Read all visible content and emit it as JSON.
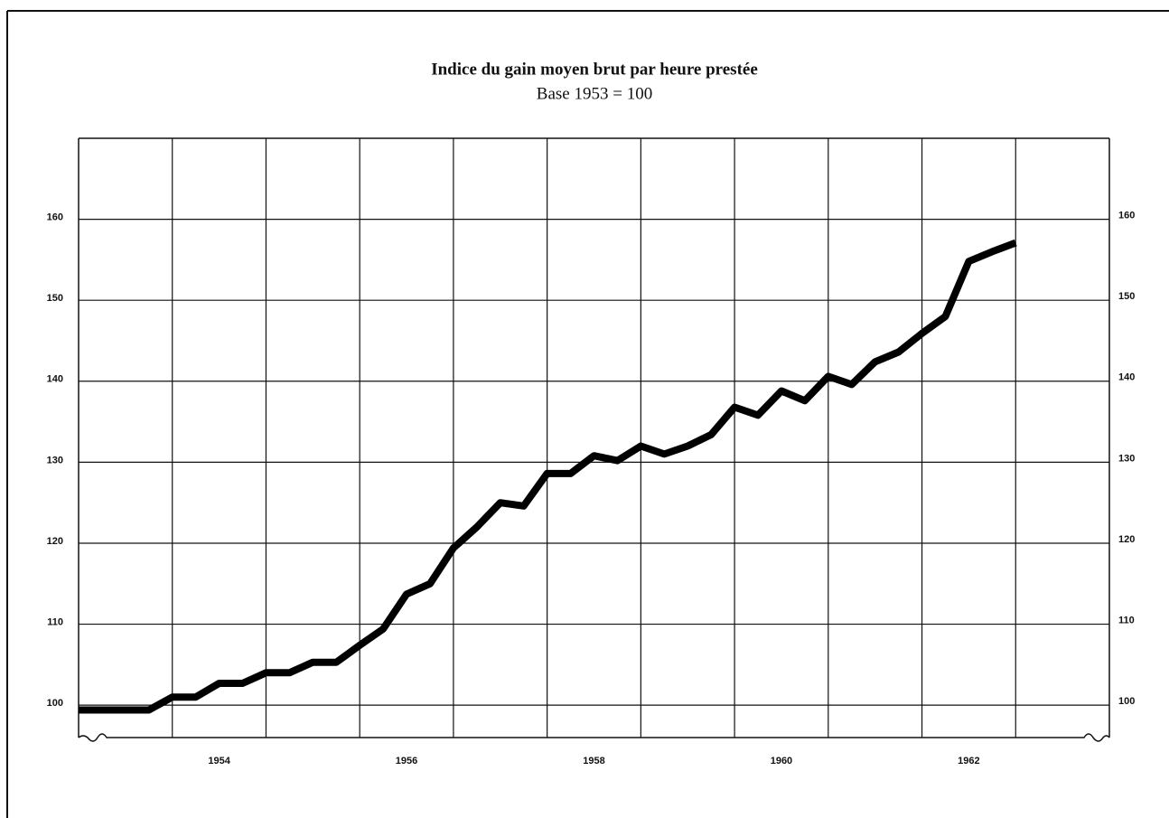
{
  "chart_data": {
    "type": "line",
    "title": "Indice du gain moyen brut par heure prestée",
    "subtitle": "Base 1953 = 100",
    "x": [
      1953,
      1953.25,
      1953.5,
      1953.75,
      1954,
      1954.25,
      1954.5,
      1954.75,
      1955,
      1955.25,
      1955.5,
      1955.75,
      1956,
      1956.25,
      1956.5,
      1956.75,
      1957,
      1957.25,
      1957.5,
      1957.75,
      1958,
      1958.25,
      1958.5,
      1958.75,
      1959,
      1959.25,
      1959.5,
      1959.75,
      1960,
      1960.25,
      1960.5,
      1960.75,
      1961,
      1961.25,
      1961.5,
      1961.75,
      1962,
      1962.25,
      1962.5,
      1962.75,
      1963
    ],
    "series": [
      {
        "color": "#000000",
        "values": [
          99.4,
          99.4,
          99.4,
          99.4,
          101,
          101,
          102.7,
          102.7,
          104,
          104,
          105.3,
          105.3,
          107.4,
          109.4,
          113.7,
          115,
          119.4,
          122,
          125,
          124.6,
          128.6,
          128.6,
          130.8,
          130.2,
          132,
          131,
          132,
          133.4,
          136.8,
          135.8,
          138.8,
          137.6,
          140.6,
          139.6,
          142.4,
          143.6,
          145.9,
          148,
          154.8,
          156,
          157.1
        ]
      }
    ],
    "xlim": [
      1953,
      1964
    ],
    "xticks": [
      1954,
      1956,
      1958,
      1960,
      1962
    ],
    "xgrid": [
      1954,
      1955,
      1956,
      1957,
      1958,
      1959,
      1960,
      1961,
      1962,
      1963
    ],
    "ylim": [
      96,
      170
    ],
    "yticks": [
      100,
      110,
      120,
      130,
      140,
      150,
      160
    ],
    "grid": true
  }
}
